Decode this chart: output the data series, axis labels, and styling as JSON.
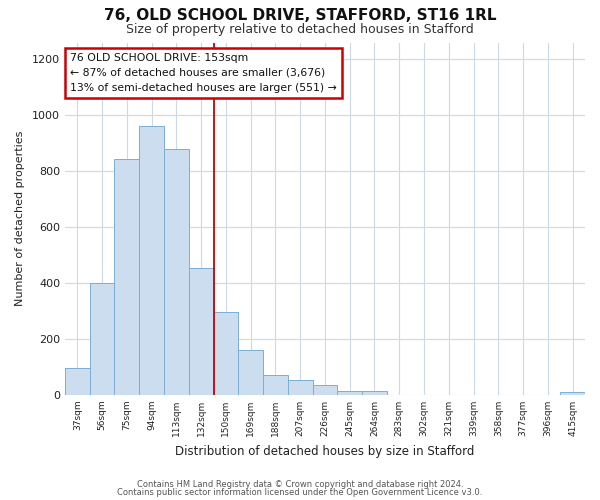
{
  "title": "76, OLD SCHOOL DRIVE, STAFFORD, ST16 1RL",
  "subtitle": "Size of property relative to detached houses in Stafford",
  "xlabel": "Distribution of detached houses by size in Stafford",
  "ylabel": "Number of detached properties",
  "bar_labels": [
    "37sqm",
    "56sqm",
    "75sqm",
    "94sqm",
    "113sqm",
    "132sqm",
    "150sqm",
    "169sqm",
    "188sqm",
    "207sqm",
    "226sqm",
    "245sqm",
    "264sqm",
    "283sqm",
    "302sqm",
    "321sqm",
    "339sqm",
    "358sqm",
    "377sqm",
    "396sqm",
    "415sqm"
  ],
  "bar_values": [
    95,
    400,
    845,
    960,
    880,
    455,
    295,
    160,
    73,
    52,
    35,
    15,
    15,
    0,
    0,
    0,
    0,
    0,
    0,
    0,
    10
  ],
  "bar_color": "#ccddf0",
  "bar_edge_color": "#7bafd4",
  "red_line_index": 6,
  "annotation_text": "76 OLD SCHOOL DRIVE: 153sqm\n← 87% of detached houses are smaller (3,676)\n13% of semi-detached houses are larger (551) →",
  "annotation_box_color": "#ffffff",
  "annotation_box_edge": "#cc0000",
  "ylim": [
    0,
    1260
  ],
  "yticks": [
    0,
    200,
    400,
    600,
    800,
    1000,
    1200
  ],
  "footer1": "Contains HM Land Registry data © Crown copyright and database right 2024.",
  "footer2": "Contains public sector information licensed under the Open Government Licence v3.0.",
  "background_color": "#ffffff",
  "grid_color": "#ccd9e8",
  "title_fontsize": 11,
  "subtitle_fontsize": 9
}
